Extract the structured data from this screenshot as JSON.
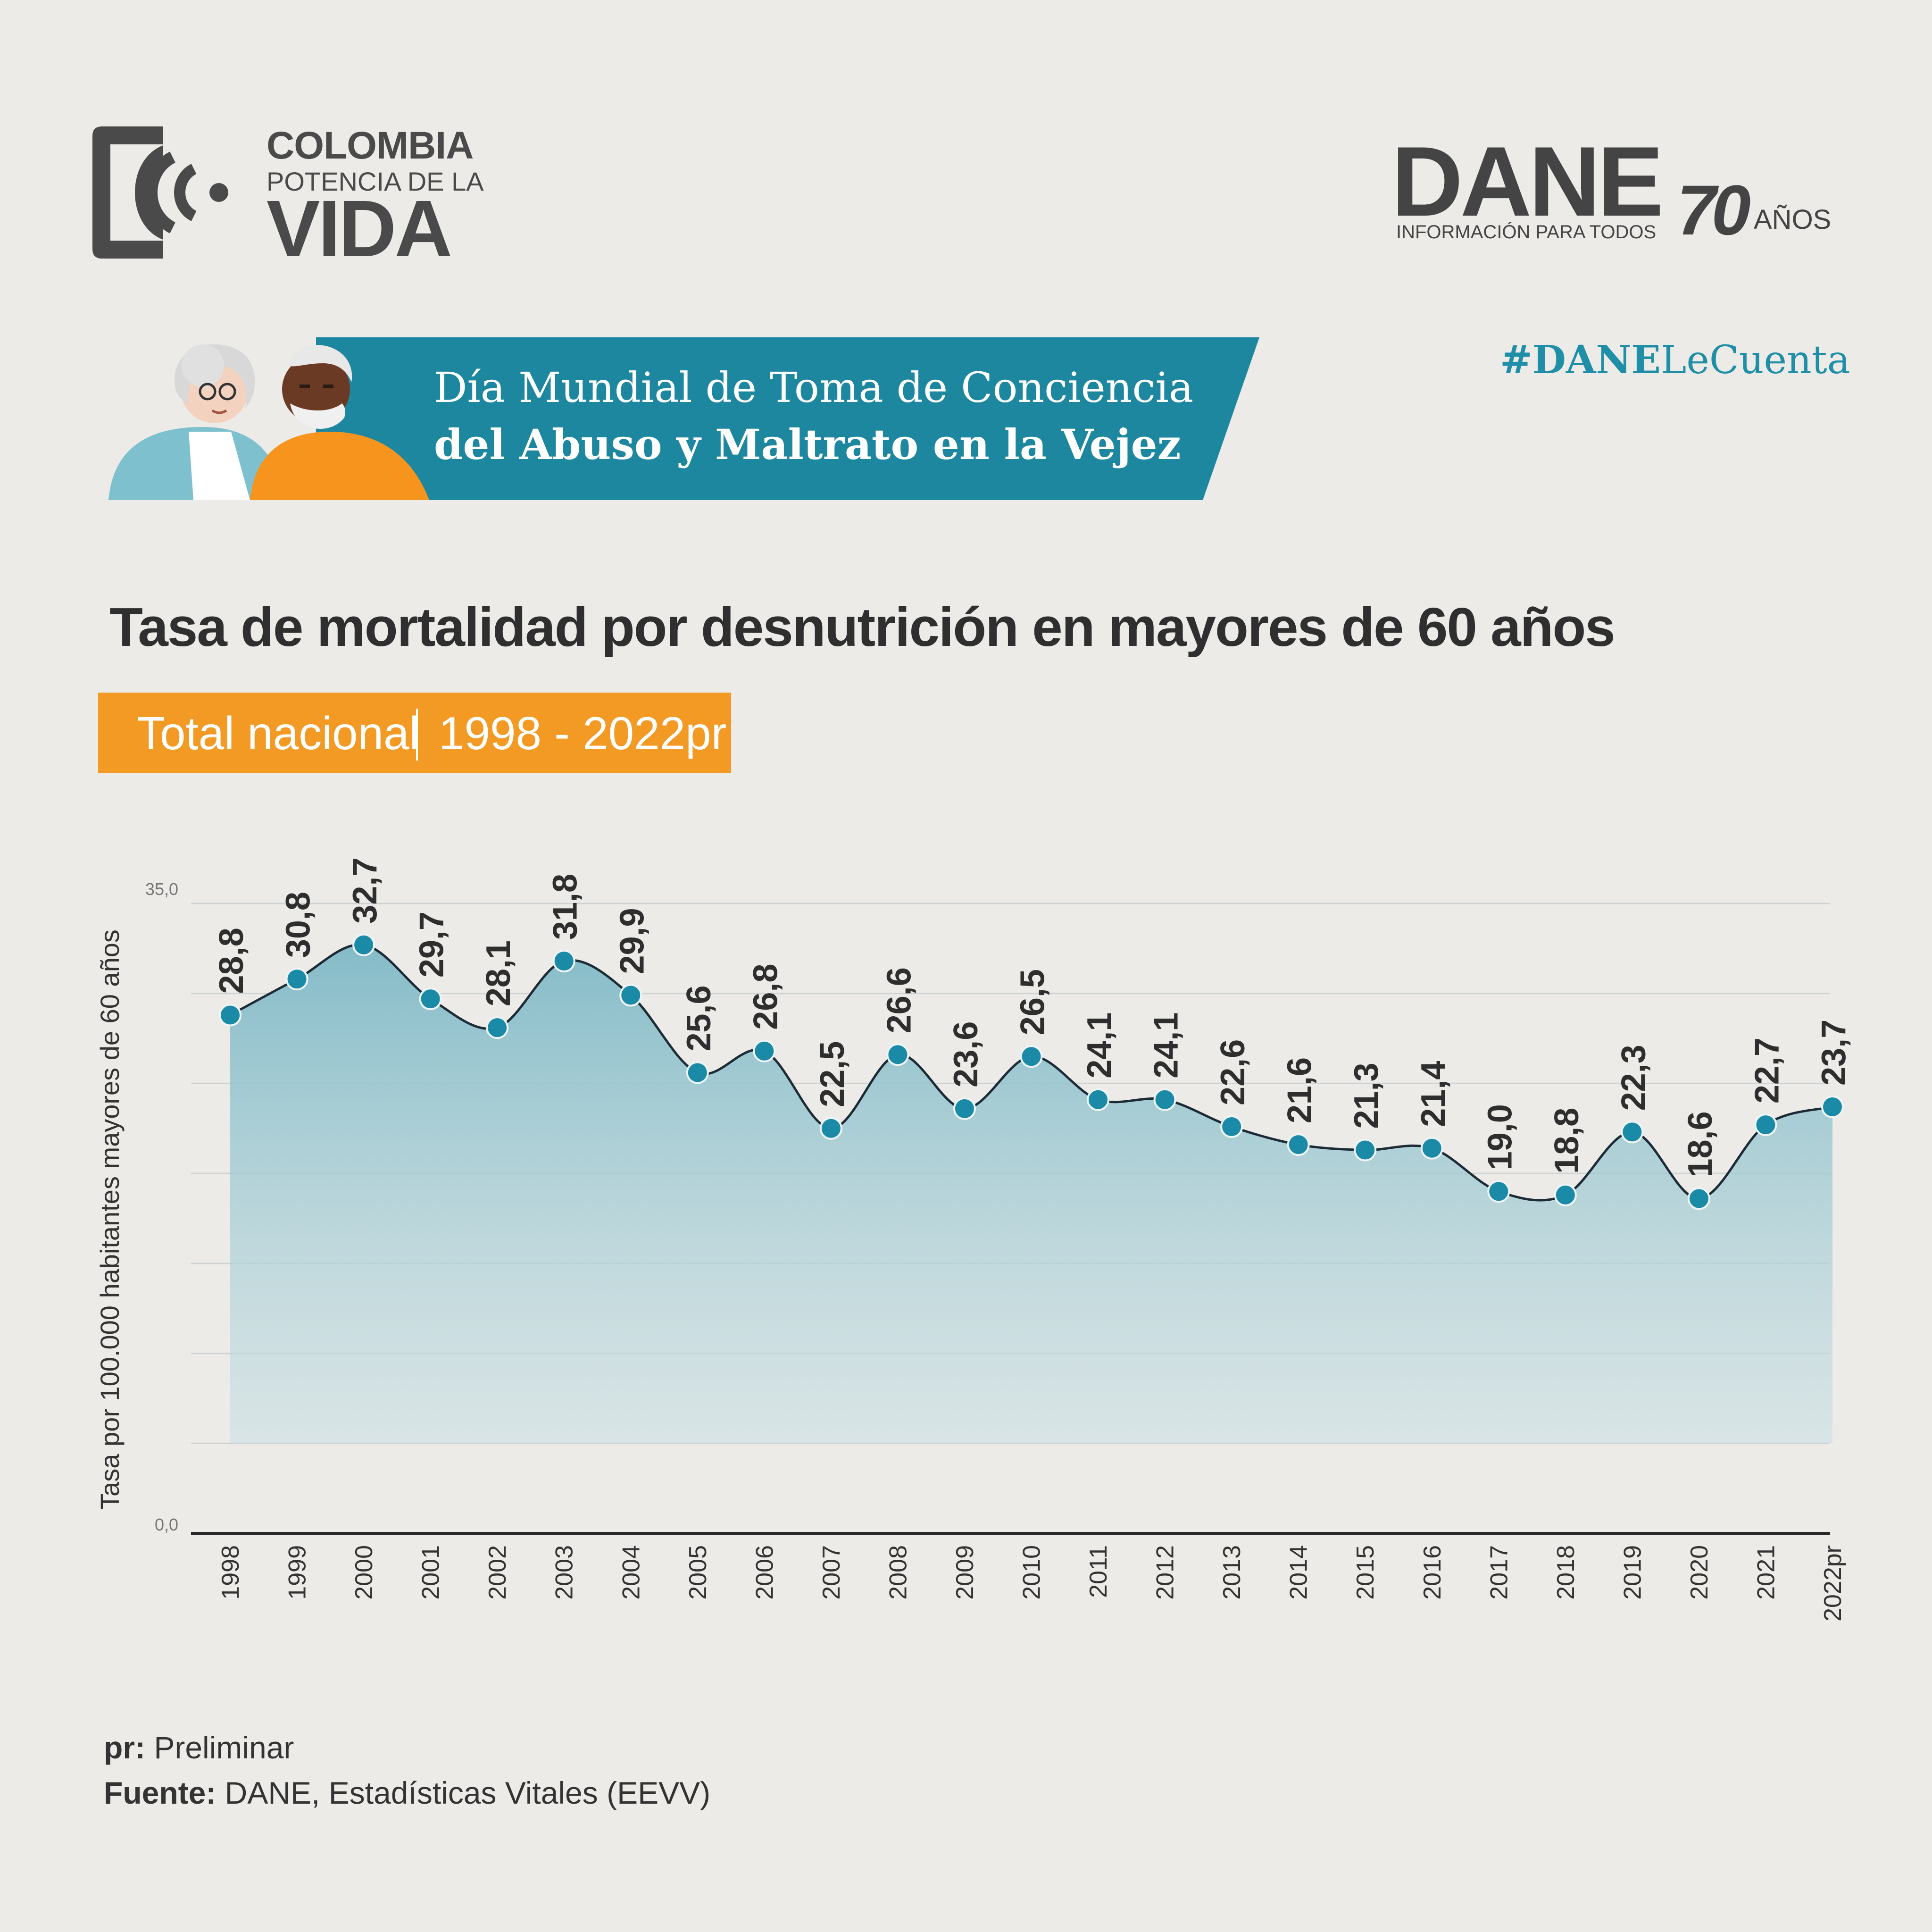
{
  "logos": {
    "colombia": {
      "line1": "COLOMBIA",
      "line2": "POTENCIA DE LA",
      "line3": "VIDA"
    },
    "dane": {
      "word": "DANE",
      "subtitle": "INFORMACIÓN PARA TODOS",
      "anniversary_number": "70",
      "anniversary_label": "AÑOS"
    }
  },
  "hashtag": {
    "strong": "#DANE",
    "light": "LeCuenta"
  },
  "banner": {
    "line1": "Día Mundial de Toma de Conciencia",
    "line2": "del Abuso y Maltrato en la Vejez"
  },
  "colors": {
    "teal": "#1f8fa8",
    "banner_teal": "#1e87a0",
    "orange": "#f39a25",
    "area_fill": "#8cc3ce",
    "line": "#1c2b36",
    "marker": "#1b8aa6"
  },
  "chart_data": {
    "type": "area",
    "title": "Tasa de mortalidad por desnutrición en mayores de 60 años",
    "subtitle_scope": "Total nacional",
    "subtitle_period": "1998 - 2022pr",
    "ylabel": "Tasa por 100.000 habitantes mayores de 60 años",
    "xlabel": "",
    "ylim": [
      0,
      35
    ],
    "y_tick_labels": [
      "0,0",
      "35,0"
    ],
    "grid": true,
    "categories": [
      "1998",
      "1999",
      "2000",
      "2001",
      "2002",
      "2003",
      "2004",
      "2005",
      "2006",
      "2007",
      "2008",
      "2009",
      "2010",
      "2011",
      "2012",
      "2013",
      "2014",
      "2015",
      "2016",
      "2017",
      "2018",
      "2019",
      "2020",
      "2021",
      "2022pr"
    ],
    "values": [
      28.8,
      30.8,
      32.7,
      29.7,
      28.1,
      31.8,
      29.9,
      25.6,
      26.8,
      22.5,
      26.6,
      23.6,
      26.5,
      24.1,
      24.1,
      22.6,
      21.6,
      21.3,
      21.4,
      19.0,
      18.8,
      22.3,
      18.6,
      22.7,
      23.7
    ],
    "value_labels": [
      "28,8",
      "30,8",
      "32,7",
      "29,7",
      "28,1",
      "31,8",
      "29,9",
      "25,6",
      "26,8",
      "22,5",
      "26,6",
      "23,6",
      "26,5",
      "24,1",
      "24,1",
      "22,6",
      "21,6",
      "21,3",
      "21,4",
      "19,0",
      "18,8",
      "22,3",
      "18,6",
      "22,7",
      "23,7"
    ]
  },
  "footnotes": {
    "pr_label": "pr:",
    "pr_text": " Preliminar",
    "source_label": "Fuente:",
    "source_text": " DANE, Estadísticas Vitales (EEVV)"
  }
}
